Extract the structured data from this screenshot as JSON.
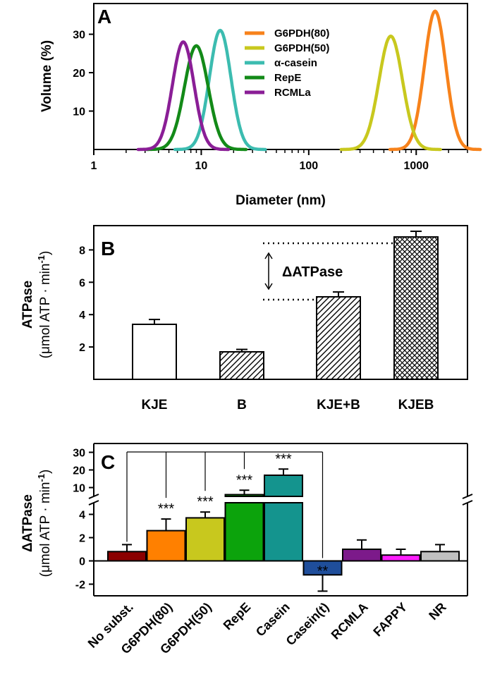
{
  "chart_data": [
    {
      "panel": "A",
      "type": "line",
      "xlabel": "Diameter (nm)",
      "ylabel": "Volume (%)",
      "x_scale": "log",
      "xlim": [
        1,
        3000
      ],
      "ylim": [
        0,
        38
      ],
      "x_ticks": [
        "1",
        "10",
        "100",
        "1000"
      ],
      "y_ticks": [
        "10",
        "20",
        "30"
      ],
      "series": [
        {
          "name": "G6PDH(80)",
          "color": "#f7821b",
          "peak_diameter": 1500,
          "peak_volume": 36,
          "log_width": 0.1
        },
        {
          "name": "G6PDH(50)",
          "color": "#c8c81e",
          "peak_diameter": 580,
          "peak_volume": 29.5,
          "log_width": 0.11
        },
        {
          "name": "α-casein",
          "color": "#3cbcb0",
          "peak_diameter": 15,
          "peak_volume": 31,
          "log_width": 0.1
        },
        {
          "name": "RepE",
          "color": "#138a18",
          "peak_diameter": 9,
          "peak_volume": 27,
          "log_width": 0.11
        },
        {
          "name": "RCMLa",
          "color": "#8a1e96",
          "peak_diameter": 6.8,
          "peak_volume": 28,
          "log_width": 0.1
        }
      ]
    },
    {
      "panel": "B",
      "type": "bar",
      "ylabel_line1": "ATPase",
      "ylabel_line2": "(μmol ATP · min",
      "ylabel_sup": "-1",
      "ylabel_close": ")",
      "ylim": [
        0,
        9.5
      ],
      "y_ticks": [
        "2",
        "4",
        "6",
        "8"
      ],
      "categories": [
        "KJE",
        "B",
        "KJE+B",
        "KJEB"
      ],
      "values": [
        3.4,
        1.7,
        5.1,
        8.8
      ],
      "errors": [
        0.3,
        0.15,
        0.3,
        0.35
      ],
      "patterns": [
        "none",
        "diagonal",
        "diagonal",
        "crosshatch"
      ],
      "annotation": "ΔATPase"
    },
    {
      "panel": "C",
      "type": "bar",
      "ylabel_line1": "ΔATPase",
      "ylabel_line2": "(μmol ATP · min",
      "ylabel_sup": "-1",
      "ylabel_close": ")",
      "y_lower_ticks": [
        "-2",
        "0",
        "2",
        "4"
      ],
      "y_upper_ticks": [
        "10",
        "20",
        "30"
      ],
      "categories": [
        "No subst.",
        "G6PDH(80)",
        "G6PDH(50)",
        "RepE",
        "Casein",
        "Casein(t)",
        "RCMLA",
        "FAPPY",
        "NR"
      ],
      "values": [
        0.8,
        2.6,
        3.7,
        6,
        17,
        -1.2,
        1.0,
        0.5,
        0.8
      ],
      "errors": [
        0.6,
        1.0,
        0.5,
        2.5,
        3.5,
        1.4,
        0.8,
        0.5,
        0.6
      ],
      "colors": [
        "#8b0000",
        "#ff8000",
        "#c8c81e",
        "#0ca30c",
        "#14948e",
        "#1f4e9b",
        "#7c1a8a",
        "#ff1fff",
        "#c0c0c0"
      ],
      "significance": [
        "",
        "***",
        "***",
        "***",
        "***",
        "**",
        "",
        "",
        ""
      ]
    }
  ]
}
